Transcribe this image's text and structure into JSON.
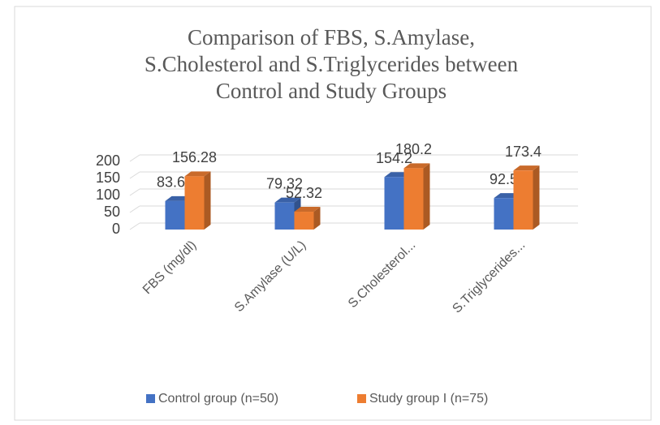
{
  "chart_data": {
    "type": "bar3d",
    "title": "Comparison of FBS, S.Amylase, S.Cholesterol and S.Triglycerides between Control and Study Groups",
    "categories": [
      "FBS (mg/dl)",
      "S.Amylase (U/L)",
      "S.Cholesterol...",
      "S.Triglycerides..."
    ],
    "series": [
      {
        "name": "Control group (n=50)",
        "color": "#4472c4",
        "values": [
          83.66,
          79.32,
          154.2,
          92.5
        ]
      },
      {
        "name": "Study group I (n=75)",
        "color": "#ed7d31",
        "values": [
          156.28,
          52.32,
          180.2,
          173.4
        ]
      }
    ],
    "ylim": [
      0,
      200
    ],
    "yticks": [
      0,
      50,
      100,
      150,
      200
    ],
    "grid": true,
    "legend": "bottom"
  }
}
